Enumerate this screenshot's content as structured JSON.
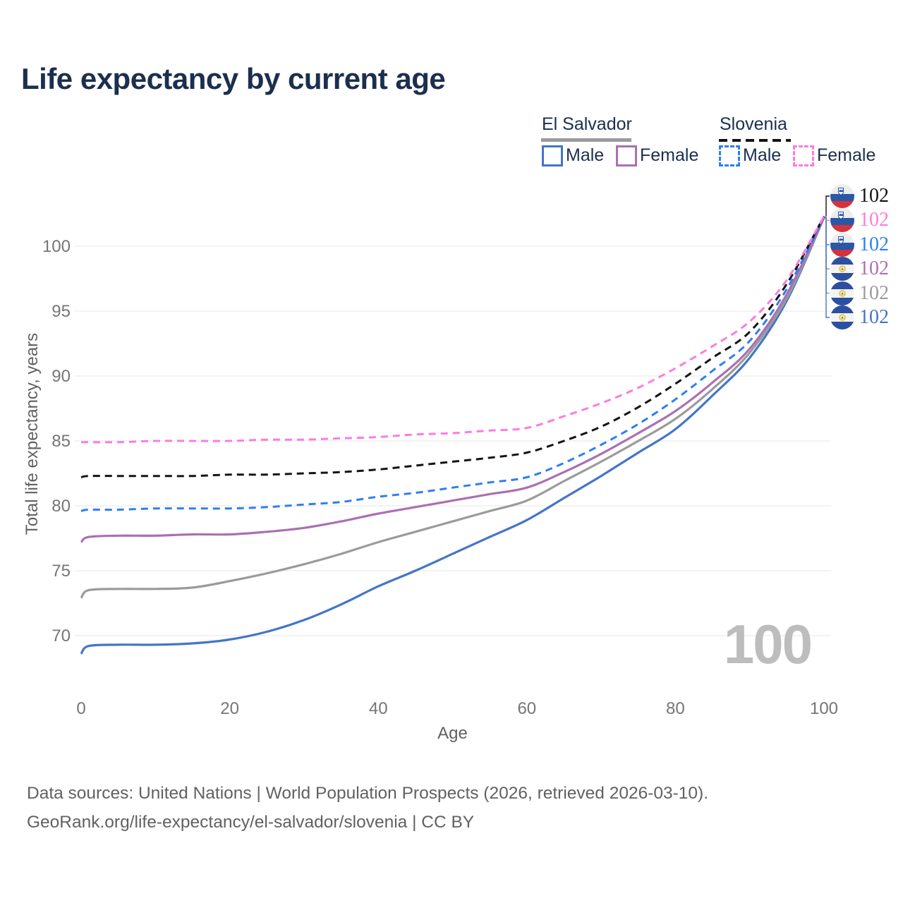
{
  "title": "Life expectancy by current age",
  "watermark": "100",
  "legend": {
    "groups": [
      {
        "label": "El Salvador",
        "line_style": "solid",
        "underline_color": "#9a9a9a",
        "items": [
          {
            "label": "Male",
            "color": "#4475c7",
            "dashed": false
          },
          {
            "label": "Female",
            "color": "#ac6fb2",
            "dashed": false
          }
        ]
      },
      {
        "label": "Slovenia",
        "line_style": "dashed",
        "underline_color": "#141414",
        "items": [
          {
            "label": "Male",
            "color": "#2e7ff2",
            "dashed": true
          },
          {
            "label": "Female",
            "color": "#fb7ce1",
            "dashed": true
          }
        ]
      }
    ]
  },
  "footer": {
    "line1": "Data sources: United Nations | World Population Prospects (2026, retrieved 2026-03-10).",
    "line2": "GeoRank.org/life-expectancy/el-salvador/slovenia | CC BY"
  },
  "chart_data": {
    "type": "line",
    "title": "Life expectancy by current age",
    "xlabel": "Age",
    "ylabel": "Total life expectancy, years",
    "x_ticks": [
      0,
      20,
      40,
      60,
      80,
      100
    ],
    "y_ticks": [
      70,
      75,
      80,
      85,
      90,
      95,
      100
    ],
    "xlim": [
      0,
      100
    ],
    "ylim": [
      67,
      103.5
    ],
    "grid": "horizontal-only",
    "legend_position": "top-right",
    "current_age_indicator": "100",
    "x": [
      0,
      1,
      5,
      10,
      15,
      20,
      25,
      30,
      35,
      40,
      45,
      50,
      55,
      60,
      65,
      70,
      75,
      80,
      85,
      90,
      95,
      100
    ],
    "series": [
      {
        "name": "El Salvador Male",
        "country": "El Salvador",
        "sex": "Male",
        "color": "#4475c7",
        "dashed": false,
        "values": [
          68.6,
          69.2,
          69.3,
          69.3,
          69.4,
          69.7,
          70.3,
          71.2,
          72.4,
          73.8,
          75.0,
          76.3,
          77.6,
          78.9,
          80.6,
          82.3,
          84.1,
          85.9,
          88.5,
          91.4,
          95.8,
          102.2
        ]
      },
      {
        "name": "El Salvador Total",
        "country": "El Salvador",
        "sex": "Total",
        "color": "#9b9b9b",
        "dashed": false,
        "values": [
          72.9,
          73.5,
          73.6,
          73.6,
          73.7,
          74.2,
          74.8,
          75.5,
          76.3,
          77.2,
          78.0,
          78.8,
          79.6,
          80.4,
          81.9,
          83.4,
          85.0,
          86.7,
          89.0,
          91.8,
          96.0,
          102.2
        ]
      },
      {
        "name": "El Salvador Female",
        "country": "El Salvador",
        "sex": "Female",
        "color": "#ac6fb2",
        "dashed": false,
        "values": [
          77.2,
          77.6,
          77.7,
          77.7,
          77.8,
          77.8,
          78.0,
          78.3,
          78.8,
          79.4,
          79.9,
          80.4,
          80.9,
          81.4,
          82.6,
          84.0,
          85.6,
          87.3,
          89.5,
          92.1,
          96.3,
          102.2
        ]
      },
      {
        "name": "Slovenia Male",
        "country": "Slovenia",
        "sex": "Male",
        "color": "#2e7ff2",
        "dashed": true,
        "values": [
          79.6,
          79.7,
          79.7,
          79.8,
          79.8,
          79.8,
          79.9,
          80.1,
          80.3,
          80.7,
          81.0,
          81.4,
          81.8,
          82.2,
          83.3,
          84.7,
          86.3,
          88.2,
          90.4,
          92.7,
          96.7,
          102.2
        ]
      },
      {
        "name": "Slovenia Total",
        "country": "Slovenia",
        "sex": "Total",
        "color": "#141414",
        "dashed": true,
        "values": [
          82.2,
          82.3,
          82.3,
          82.3,
          82.3,
          82.4,
          82.4,
          82.5,
          82.6,
          82.8,
          83.1,
          83.4,
          83.7,
          84.1,
          85.0,
          86.1,
          87.6,
          89.4,
          91.4,
          93.4,
          97.1,
          102.3
        ]
      },
      {
        "name": "Slovenia Female",
        "country": "Slovenia",
        "sex": "Female",
        "color": "#fb7ce1",
        "dashed": true,
        "values": [
          84.9,
          84.9,
          84.9,
          85.0,
          85.0,
          85.0,
          85.1,
          85.1,
          85.2,
          85.3,
          85.5,
          85.6,
          85.8,
          86.0,
          86.9,
          87.9,
          89.1,
          90.6,
          92.3,
          94.2,
          97.4,
          102.3
        ]
      }
    ],
    "end_labels": [
      {
        "series_index": 4,
        "series": "Slovenia Total",
        "country": "slovenia",
        "value": "102",
        "color": "#141414"
      },
      {
        "series_index": 5,
        "series": "Slovenia Female",
        "country": "slovenia",
        "value": "102",
        "color": "#fb7ce1"
      },
      {
        "series_index": 3,
        "series": "Slovenia Male",
        "country": "slovenia",
        "value": "102",
        "color": "#2e7ff2"
      },
      {
        "series_index": 2,
        "series": "El Salvador Female",
        "country": "el-salvador",
        "value": "102",
        "color": "#ac6fb2"
      },
      {
        "series_index": 1,
        "series": "El Salvador Total",
        "country": "el-salvador",
        "value": "102",
        "color": "#9b9b9b"
      },
      {
        "series_index": 0,
        "series": "El Salvador Male",
        "country": "el-salvador",
        "value": "102",
        "color": "#4475c7"
      }
    ]
  }
}
